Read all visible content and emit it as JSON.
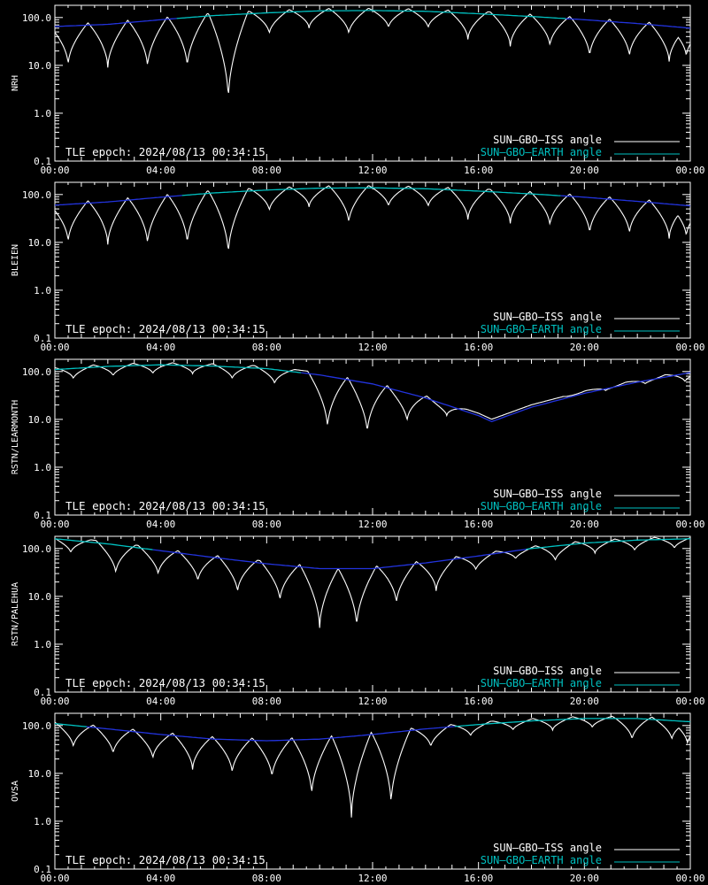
{
  "chart_data": [
    {
      "type": "line",
      "station": "NRH",
      "ylabel": "NRH",
      "epoch_text": "TLE epoch: 2024/08/13 00:34:15",
      "legend": [
        "SUN–GBO–ISS angle",
        "SUN–GBO–EARTH angle"
      ],
      "xlim_hours": [
        0,
        24
      ],
      "ylim": [
        0.1,
        180
      ],
      "yscale": "log",
      "x_tick_labels": [
        "00:00",
        "04:00",
        "08:00",
        "12:00",
        "16:00",
        "20:00",
        "00:00"
      ],
      "y_tick_labels": [
        "0.1",
        "1.0",
        "10.0",
        "100.0"
      ],
      "earth_angle": {
        "hours": [
          0,
          2,
          4,
          6,
          8,
          10,
          12,
          14,
          16,
          18,
          20,
          22,
          24
        ],
        "values": [
          65,
          72,
          90,
          110,
          125,
          138,
          140,
          135,
          120,
          105,
          90,
          75,
          60
        ],
        "colors": [
          "#00c0c0",
          "#2233dd"
        ]
      },
      "iss_minima": {
        "hours": [
          0.5,
          2.0,
          3.5,
          5.0,
          6.55,
          8.1,
          9.6,
          11.1,
          12.6,
          14.1,
          15.6,
          17.2,
          18.7,
          20.2,
          21.7,
          23.2,
          23.85
        ],
        "values": [
          10,
          9,
          9,
          9,
          1.8,
          45,
          60,
          45,
          60,
          60,
          35,
          25,
          25,
          15,
          15,
          12,
          15
        ]
      }
    },
    {
      "type": "line",
      "station": "BLEIEN",
      "ylabel": "BLEIEN",
      "epoch_text": "TLE epoch: 2024/08/13 00:34:15",
      "legend": [
        "SUN–GBO–ISS angle",
        "SUN–GBO–EARTH angle"
      ],
      "xlim_hours": [
        0,
        24
      ],
      "ylim": [
        0.1,
        180
      ],
      "yscale": "log",
      "x_tick_labels": [
        "00:00",
        "04:00",
        "08:00",
        "12:00",
        "16:00",
        "20:00",
        "00:00"
      ],
      "y_tick_labels": [
        "0.1",
        "1.0",
        "10.0",
        "100.0"
      ],
      "earth_angle": {
        "hours": [
          0,
          2,
          4,
          6,
          8,
          10,
          12,
          14,
          16,
          18,
          20,
          22,
          24
        ],
        "values": [
          60,
          70,
          88,
          108,
          124,
          136,
          138,
          132,
          118,
          103,
          88,
          72,
          58
        ],
        "colors": [
          "#00c0c0",
          "#2233dd"
        ]
      },
      "iss_minima": {
        "hours": [
          0.5,
          2.0,
          3.5,
          5.0,
          6.55,
          8.1,
          9.6,
          11.1,
          12.6,
          14.1,
          15.6,
          17.2,
          18.7,
          20.2,
          21.7,
          23.2,
          23.85
        ],
        "values": [
          10,
          9,
          9,
          9,
          5.5,
          45,
          55,
          25,
          55,
          55,
          30,
          25,
          22,
          15,
          15,
          12,
          13
        ]
      }
    },
    {
      "type": "line",
      "station": "RSTN/LEARMONTH",
      "ylabel": "RSTN/LEARMONTH",
      "epoch_text": "TLE epoch: 2024/08/13 00:34:15",
      "legend": [
        "SUN–GBO–ISS angle",
        "SUN–GBO–EARTH angle"
      ],
      "xlim_hours": [
        0,
        24
      ],
      "ylim": [
        0.1,
        180
      ],
      "yscale": "log",
      "x_tick_labels": [
        "00:00",
        "04:00",
        "08:00",
        "12:00",
        "16:00",
        "20:00",
        "00:00"
      ],
      "y_tick_labels": [
        "0.1",
        "1.0",
        "10.0",
        "100.0"
      ],
      "earth_angle": {
        "hours": [
          0,
          2,
          4,
          6,
          8,
          10,
          12,
          14,
          16,
          16.5,
          18,
          20,
          22,
          24
        ],
        "values": [
          110,
          128,
          138,
          130,
          115,
          85,
          55,
          28,
          12,
          9,
          18,
          35,
          60,
          95
        ],
        "colors": [
          "#00c0c0",
          "#2233dd"
        ]
      },
      "iss_minima": {
        "hours": [
          0.7,
          2.2,
          3.7,
          5.2,
          6.7,
          8.3,
          10.3,
          11.8,
          13.3,
          14.8,
          16.3,
          17.8,
          19.3,
          20.8,
          22.3,
          23.8
        ],
        "values": [
          70,
          80,
          90,
          90,
          70,
          55,
          6.5,
          5,
          9,
          12,
          18,
          25,
          30,
          40,
          55,
          60
        ]
      }
    },
    {
      "type": "line",
      "station": "RSTN/PALEHUA",
      "ylabel": "RSTN/PALEHUA",
      "epoch_text": "TLE epoch: 2024/08/13 00:34:15",
      "legend": [
        "SUN–GBO–ISS angle",
        "SUN–GBO–EARTH angle"
      ],
      "xlim_hours": [
        0,
        24
      ],
      "ylim": [
        0.1,
        180
      ],
      "yscale": "log",
      "x_tick_labels": [
        "00:00",
        "04:00",
        "08:00",
        "12:00",
        "16:00",
        "20:00",
        "00:00"
      ],
      "y_tick_labels": [
        "0.1",
        "1.0",
        "10.0",
        "100.0"
      ],
      "earth_angle": {
        "hours": [
          0,
          2,
          4,
          6,
          8,
          10,
          12,
          14,
          16,
          18,
          20,
          22,
          24
        ],
        "values": [
          160,
          125,
          90,
          65,
          48,
          38,
          38,
          50,
          70,
          100,
          130,
          150,
          160
        ],
        "colors": [
          "#00c0c0",
          "#2233dd"
        ]
      },
      "iss_minima": {
        "hours": [
          0.6,
          2.3,
          3.9,
          5.4,
          6.9,
          8.5,
          10.0,
          11.4,
          12.9,
          14.4,
          15.9,
          17.4,
          18.9,
          20.4,
          21.9,
          23.4
        ],
        "values": [
          80,
          30,
          28,
          20,
          12,
          8,
          2.2,
          2.2,
          7,
          13,
          35,
          60,
          55,
          80,
          90,
          100
        ]
      }
    },
    {
      "type": "line",
      "station": "OVSA",
      "ylabel": "OVSA",
      "epoch_text": "TLE epoch: 2024/08/13 00:34:15",
      "legend": [
        "SUN–GBO–ISS angle",
        "SUN–GBO–EARTH angle"
      ],
      "xlim_hours": [
        0,
        24
      ],
      "ylim": [
        0.1,
        180
      ],
      "yscale": "log",
      "x_tick_labels": [
        "00:00",
        "04:00",
        "08:00",
        "12:00",
        "16:00",
        "20:00",
        "00:00"
      ],
      "y_tick_labels": [
        "0.1",
        "1.0",
        "10.0",
        "100.0"
      ],
      "earth_angle": {
        "hours": [
          0,
          2,
          4,
          6,
          8,
          10,
          12,
          14,
          16,
          18,
          20,
          22,
          24
        ],
        "values": [
          110,
          85,
          65,
          52,
          48,
          52,
          65,
          85,
          105,
          125,
          140,
          140,
          120
        ],
        "colors": [
          "#00c0c0",
          "#2233dd"
        ]
      },
      "iss_minima": {
        "hours": [
          0.7,
          2.2,
          3.7,
          5.2,
          6.7,
          8.2,
          9.7,
          11.2,
          12.7,
          14.2,
          15.7,
          17.3,
          18.8,
          20.3,
          21.8,
          23.3,
          23.9
        ],
        "values": [
          35,
          25,
          20,
          12,
          10,
          8,
          3.5,
          1.2,
          2.2,
          35,
          60,
          80,
          80,
          90,
          50,
          50,
          40
        ]
      }
    }
  ]
}
